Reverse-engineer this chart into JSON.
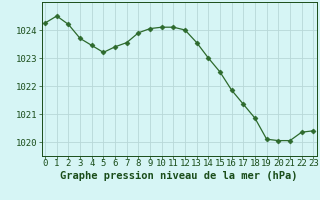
{
  "x": [
    0,
    1,
    2,
    3,
    4,
    5,
    6,
    7,
    8,
    9,
    10,
    11,
    12,
    13,
    14,
    15,
    16,
    17,
    18,
    19,
    20,
    21,
    22,
    23
  ],
  "y": [
    1024.25,
    1024.5,
    1024.2,
    1023.7,
    1023.45,
    1023.2,
    1023.4,
    1023.55,
    1023.9,
    1024.05,
    1024.1,
    1024.1,
    1024.0,
    1023.55,
    1023.0,
    1022.5,
    1021.85,
    1021.35,
    1020.85,
    1020.1,
    1020.05,
    1020.05,
    1020.35,
    1020.4
  ],
  "line_color": "#2d6a2d",
  "marker": "D",
  "marker_size": 2.5,
  "bg_color": "#d6f5f5",
  "grid_color": "#b8d8d8",
  "xlabel": "Graphe pression niveau de la mer (hPa)",
  "xlabel_color": "#1a4d1a",
  "tick_color": "#1a4d1a",
  "ylim": [
    1019.5,
    1025.0
  ],
  "yticks": [
    1020,
    1021,
    1022,
    1023,
    1024
  ],
  "xticks": [
    0,
    1,
    2,
    3,
    4,
    5,
    6,
    7,
    8,
    9,
    10,
    11,
    12,
    13,
    14,
    15,
    16,
    17,
    18,
    19,
    20,
    21,
    22,
    23
  ],
  "tick_fontsize": 6.5,
  "xlabel_fontsize": 7.5
}
